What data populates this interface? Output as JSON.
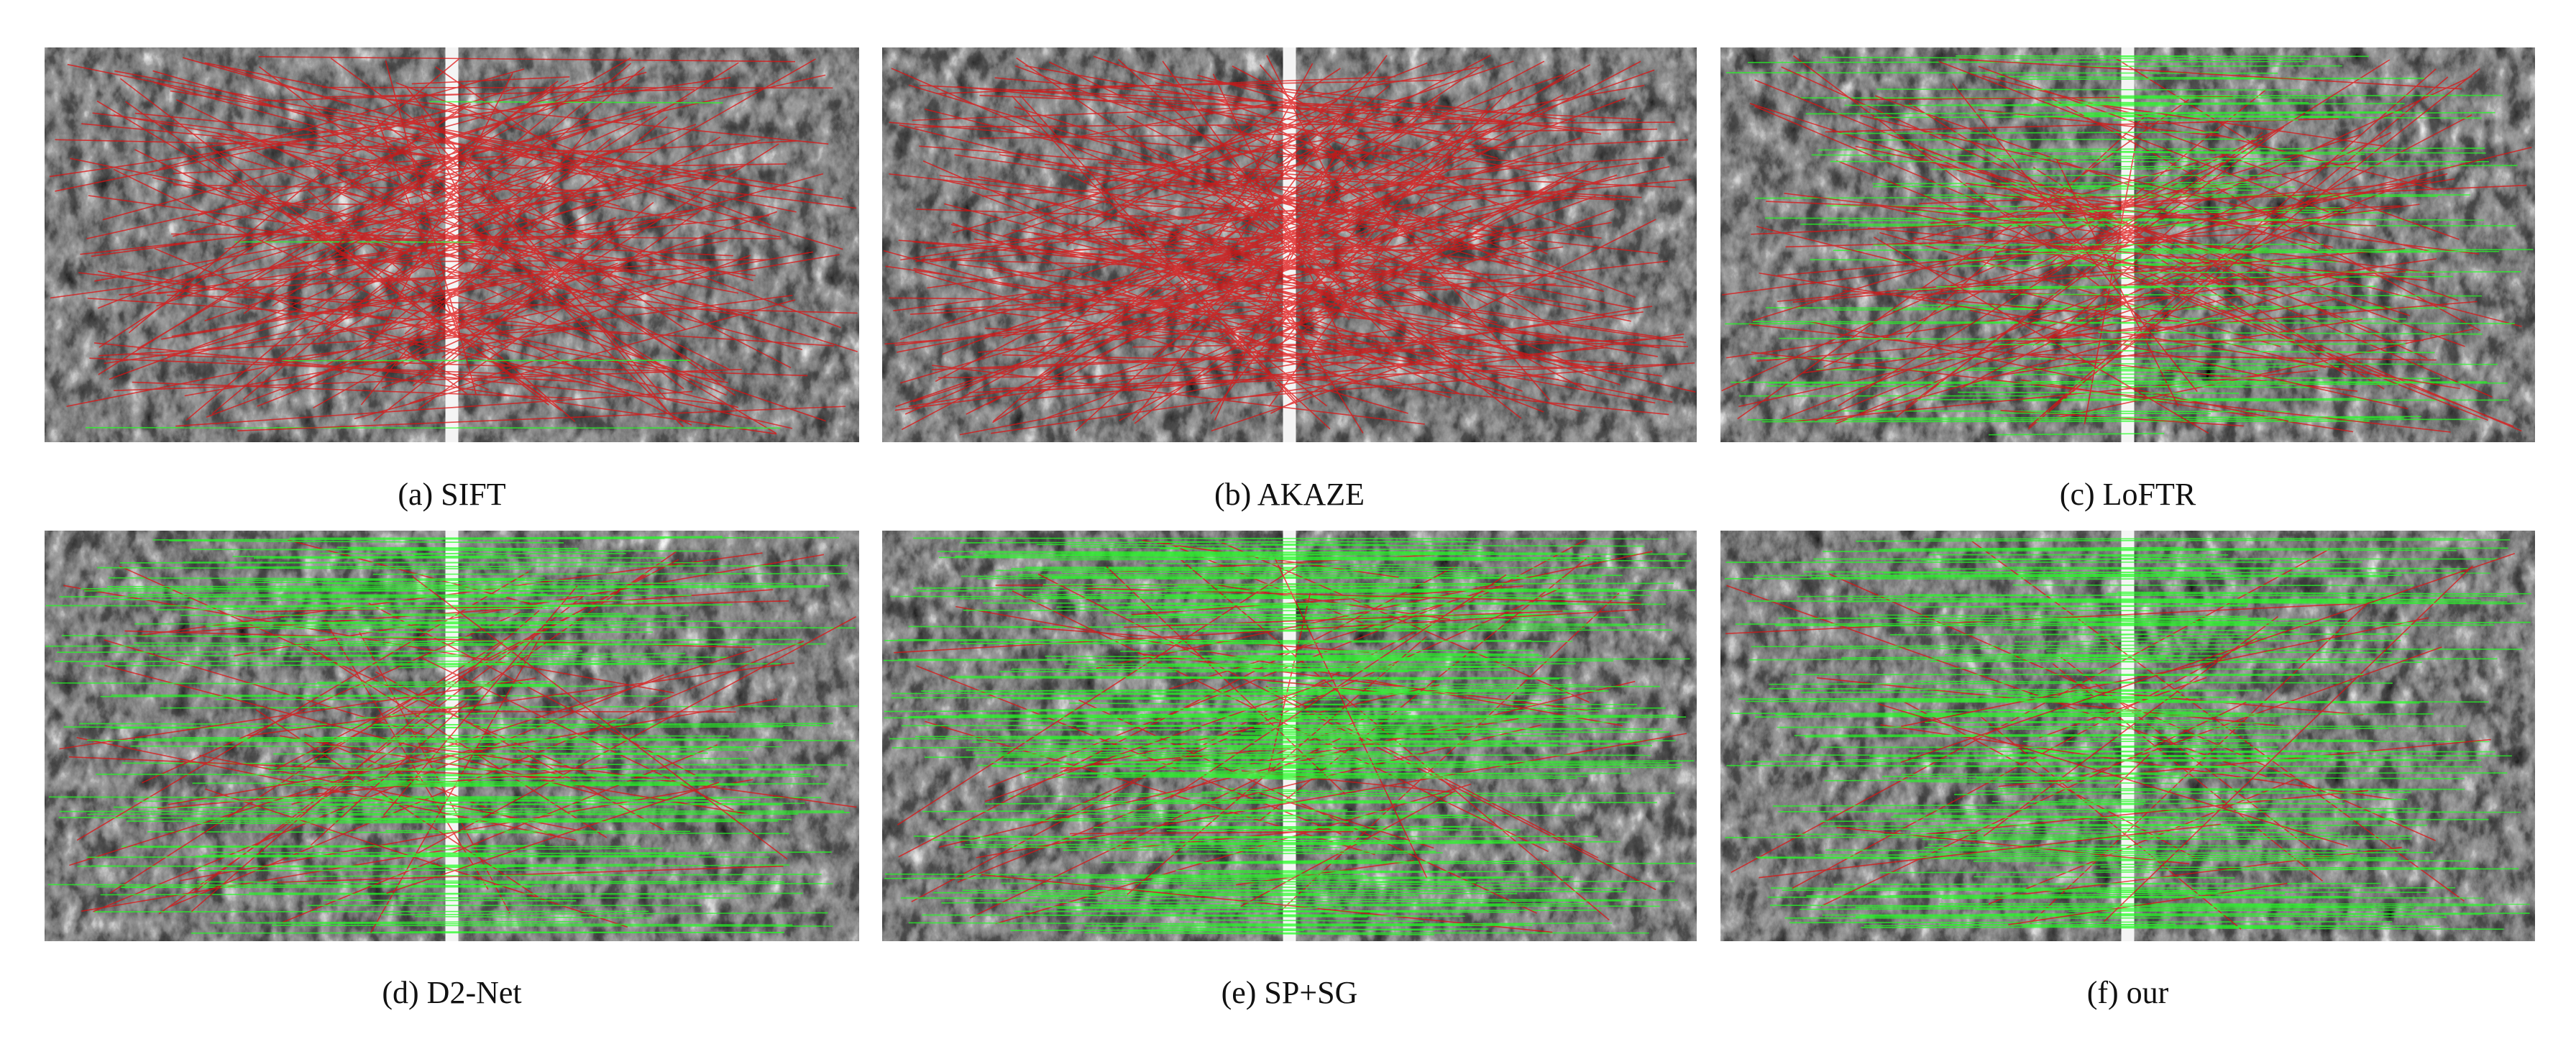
{
  "panels": [
    {
      "caption": "(a) SIFT"
    },
    {
      "caption": "(b) AKAZE"
    },
    {
      "caption": "(c) LoFTR"
    },
    {
      "caption": "(d) D2-Net"
    },
    {
      "caption": "(e) SP+SG"
    },
    {
      "caption": "(f) our"
    }
  ]
}
